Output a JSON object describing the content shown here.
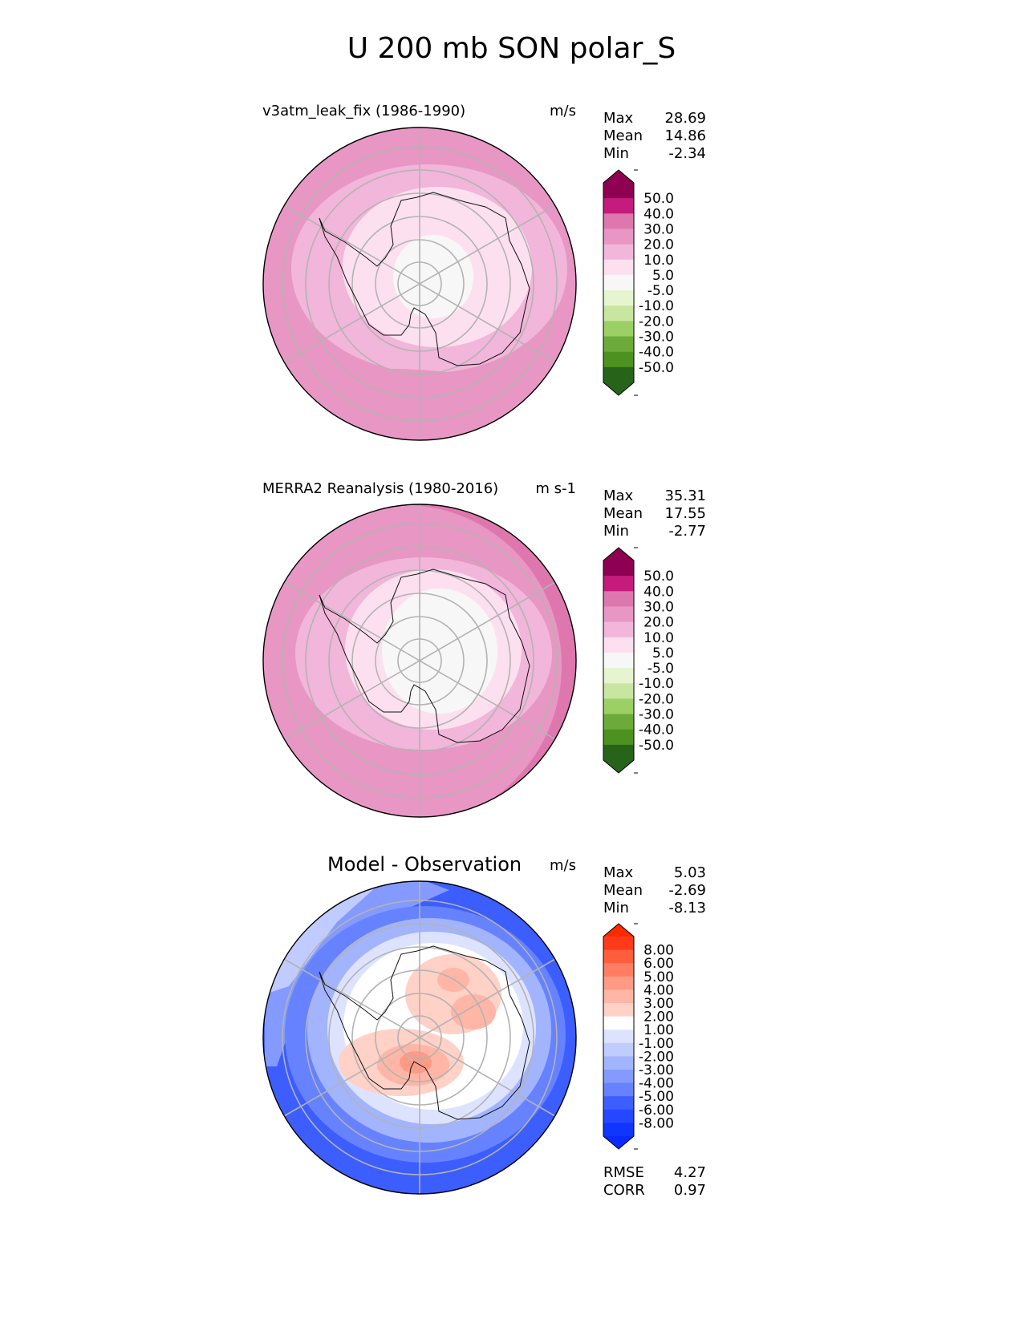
{
  "figure": {
    "title": "U 200 mb SON polar_S"
  },
  "panels": [
    {
      "id": "test",
      "title": "v3atm_leak_fix (1986-1990)",
      "units": "m/s",
      "stats": [
        {
          "label": "Max",
          "value": "28.69"
        },
        {
          "label": "Mean",
          "value": "14.86"
        },
        {
          "label": "Min",
          "value": "-2.34"
        }
      ],
      "colorbar": {
        "ticks": [
          "50.0",
          "40.0",
          "30.0",
          "20.0",
          "10.0",
          "5.0",
          "-5.0",
          "-10.0",
          "-20.0",
          "-30.0",
          "-40.0",
          "-50.0"
        ],
        "colors": [
          "#8e0152",
          "#c51b7d",
          "#de77ae",
          "#e896c4",
          "#f1b6da",
          "#fde0ef",
          "#f7f7f7",
          "#e6f5d0",
          "#c8e6a0",
          "#9ccf64",
          "#6cab39",
          "#4d9221",
          "#276419"
        ],
        "top_extend": "#8e0152",
        "bottom_extend": "#276419"
      }
    },
    {
      "id": "ref",
      "title": "MERRA2 Reanalysis (1980-2016)",
      "units": "m s-1",
      "stats": [
        {
          "label": "Max",
          "value": "35.31"
        },
        {
          "label": "Mean",
          "value": "17.55"
        },
        {
          "label": "Min",
          "value": "-2.77"
        }
      ],
      "colorbar": {
        "ticks": [
          "50.0",
          "40.0",
          "30.0",
          "20.0",
          "10.0",
          "5.0",
          "-5.0",
          "-10.0",
          "-20.0",
          "-30.0",
          "-40.0",
          "-50.0"
        ],
        "colors": [
          "#8e0152",
          "#c51b7d",
          "#de77ae",
          "#e896c4",
          "#f1b6da",
          "#fde0ef",
          "#f7f7f7",
          "#e6f5d0",
          "#c8e6a0",
          "#9ccf64",
          "#6cab39",
          "#4d9221",
          "#276419"
        ],
        "top_extend": "#8e0152",
        "bottom_extend": "#276419"
      }
    },
    {
      "id": "diff",
      "title": "Model - Observation",
      "units": "m/s",
      "stats": [
        {
          "label": "Max",
          "value": "5.03"
        },
        {
          "label": "Mean",
          "value": "-2.69"
        },
        {
          "label": "Min",
          "value": "-8.13"
        }
      ],
      "colorbar": {
        "ticks": [
          "8.00",
          "6.00",
          "5.00",
          "4.00",
          "3.00",
          "2.00",
          "1.00",
          "-1.00",
          "-2.00",
          "-3.00",
          "-4.00",
          "-5.00",
          "-6.00",
          "-8.00"
        ],
        "colors": [
          "#ff3a1a",
          "#ff5e3c",
          "#ff7e63",
          "#ff9a85",
          "#ffb6a6",
          "#ffd1c7",
          "#ffffff",
          "#dde3ff",
          "#c0ccff",
          "#a3b4ff",
          "#849aff",
          "#6682ff",
          "#3c5eff",
          "#2447ff",
          "#0f35ff"
        ],
        "top_extend": "#ff2a00",
        "bottom_extend": "#0a2aff"
      },
      "extra_stats": [
        {
          "label": "RMSE",
          "value": "4.27"
        },
        {
          "label": "CORR",
          "value": "0.97"
        }
      ]
    }
  ],
  "chart_data": [
    {
      "type": "heatmap",
      "projection": "south-polar-stereographic",
      "title": "v3atm_leak_fix (1986-1990)",
      "variable": "U 200 mb SON",
      "units": "m/s",
      "levels": [
        -50,
        -40,
        -30,
        -20,
        -10,
        -5,
        5,
        10,
        20,
        30,
        40,
        50
      ],
      "max": 28.69,
      "mean": 14.86,
      "min": -2.34,
      "field_bands_m_s": [
        "-5 to 5 (pole)",
        "5 to 10",
        "10 to 20",
        "20 to 30 (outer ring)"
      ]
    },
    {
      "type": "heatmap",
      "projection": "south-polar-stereographic",
      "title": "MERRA2 Reanalysis (1980-2016)",
      "variable": "U 200 mb SON",
      "units": "m s-1",
      "levels": [
        -50,
        -40,
        -30,
        -20,
        -10,
        -5,
        5,
        10,
        20,
        30,
        40,
        50
      ],
      "max": 35.31,
      "mean": 17.55,
      "min": -2.77,
      "field_bands_m_s": [
        "-5 to 5 (pole)",
        "5 to 10",
        "10 to 20",
        "20 to 30",
        "30 to 40 (edge)"
      ]
    },
    {
      "type": "heatmap",
      "projection": "south-polar-stereographic",
      "title": "Model - Observation",
      "units": "m/s",
      "levels": [
        -8,
        -6,
        -5,
        -4,
        -3,
        -2,
        -1,
        1,
        2,
        3,
        4,
        5,
        6,
        8
      ],
      "max": 5.03,
      "mean": -2.69,
      "min": -8.13,
      "rmse": 4.27,
      "corr": 0.97,
      "field_bands_m_s": [
        "2 to 4 (interior positive)",
        "-1 to 1",
        "-3 to -1",
        "-6 to -4 (outer)"
      ]
    }
  ]
}
